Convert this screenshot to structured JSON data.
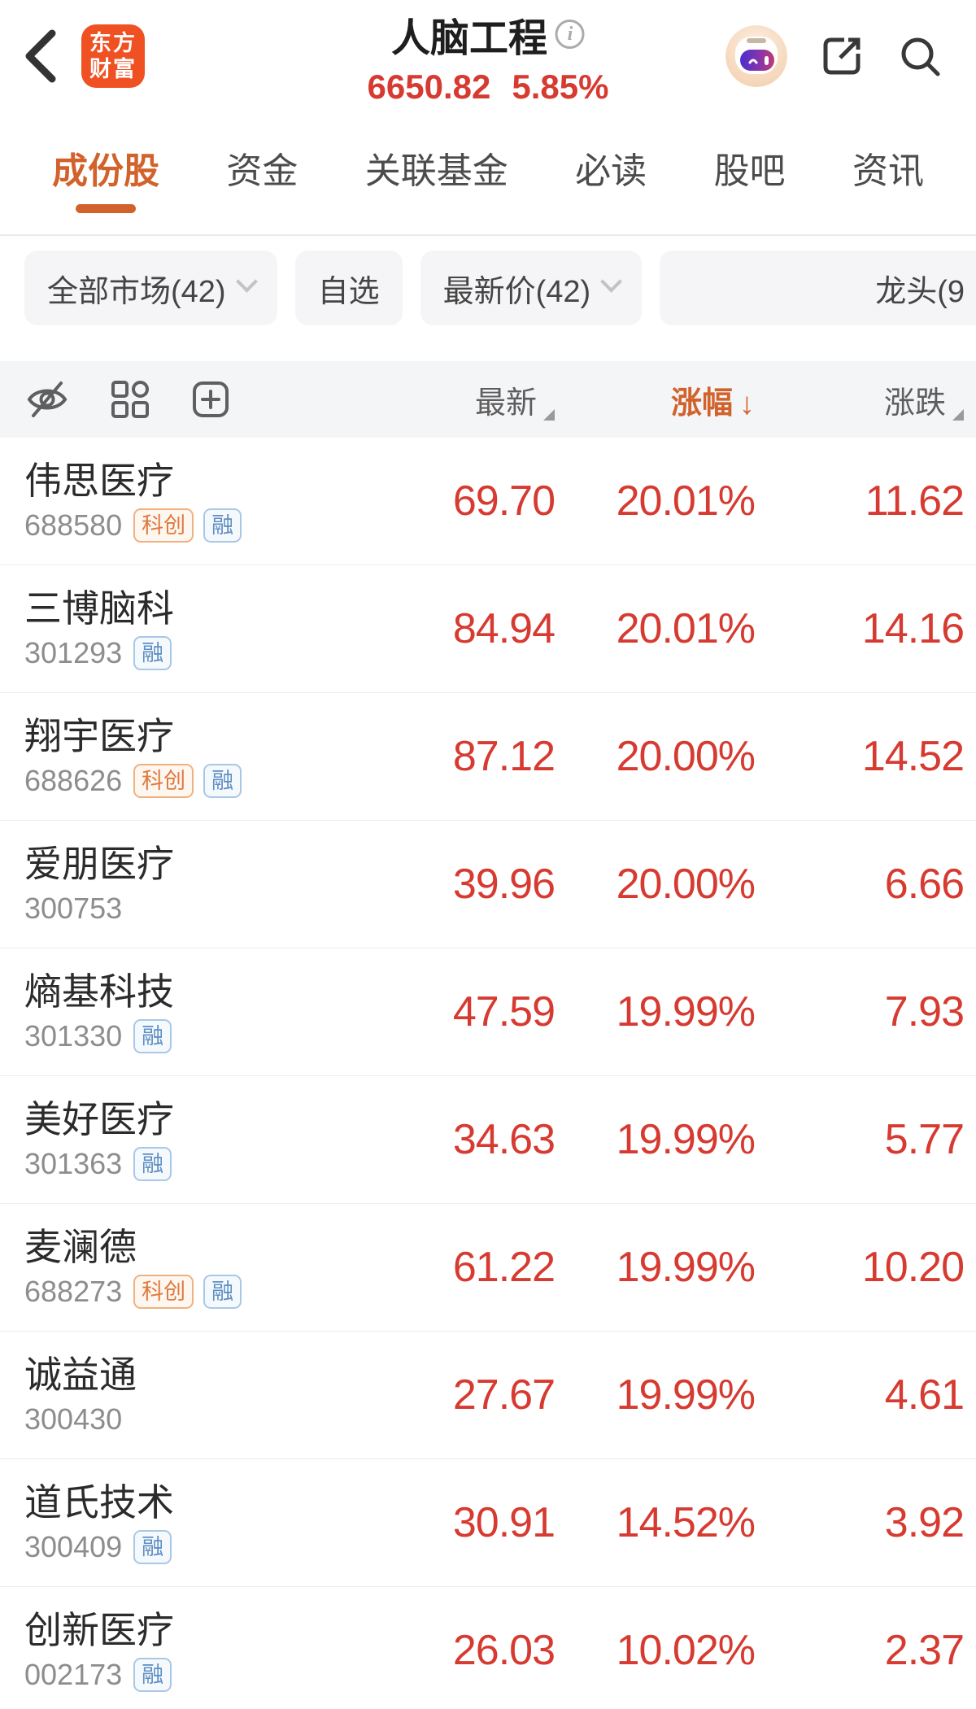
{
  "header": {
    "logo": {
      "line1": "东方",
      "line2": "财富"
    },
    "title": "人脑工程",
    "index_value": "6650.82",
    "index_change_pct": "5.85%"
  },
  "tabs": [
    {
      "label": "成份股",
      "active": true
    },
    {
      "label": "资金",
      "active": false
    },
    {
      "label": "关联基金",
      "active": false
    },
    {
      "label": "必读",
      "active": false
    },
    {
      "label": "股吧",
      "active": false
    },
    {
      "label": "资讯",
      "active": false
    }
  ],
  "filters": [
    {
      "label": "全部市场(42)",
      "chevron": true,
      "cut": false
    },
    {
      "label": "自选",
      "chevron": false,
      "cut": false
    },
    {
      "label": "最新价(42)",
      "chevron": true,
      "cut": false
    },
    {
      "label": "龙头(9",
      "chevron": false,
      "cut": true
    }
  ],
  "table": {
    "columns": [
      {
        "label": "最新",
        "sort": "none"
      },
      {
        "label": "涨幅",
        "sort": "desc"
      },
      {
        "label": "涨跌",
        "sort": "none"
      }
    ],
    "sort_arrow": "↓",
    "rows": [
      {
        "name": "伟思医疗",
        "code": "688580",
        "badges": [
          "科创",
          "融"
        ],
        "last": "69.70",
        "change_pct": "20.01%",
        "change": "11.62"
      },
      {
        "name": "三博脑科",
        "code": "301293",
        "badges": [
          "融"
        ],
        "last": "84.94",
        "change_pct": "20.01%",
        "change": "14.16"
      },
      {
        "name": "翔宇医疗",
        "code": "688626",
        "badges": [
          "科创",
          "融"
        ],
        "last": "87.12",
        "change_pct": "20.00%",
        "change": "14.52"
      },
      {
        "name": "爱朋医疗",
        "code": "300753",
        "badges": [],
        "last": "39.96",
        "change_pct": "20.00%",
        "change": "6.66"
      },
      {
        "name": "熵基科技",
        "code": "301330",
        "badges": [
          "融"
        ],
        "last": "47.59",
        "change_pct": "19.99%",
        "change": "7.93"
      },
      {
        "name": "美好医疗",
        "code": "301363",
        "badges": [
          "融"
        ],
        "last": "34.63",
        "change_pct": "19.99%",
        "change": "5.77"
      },
      {
        "name": "麦澜德",
        "code": "688273",
        "badges": [
          "科创",
          "融"
        ],
        "last": "61.22",
        "change_pct": "19.99%",
        "change": "10.20"
      },
      {
        "name": "诚益通",
        "code": "300430",
        "badges": [],
        "last": "27.67",
        "change_pct": "19.99%",
        "change": "4.61"
      },
      {
        "name": "道氏技术",
        "code": "300409",
        "badges": [
          "融"
        ],
        "last": "30.91",
        "change_pct": "14.52%",
        "change": "3.92"
      },
      {
        "name": "创新医疗",
        "code": "002173",
        "badges": [
          "融"
        ],
        "last": "26.03",
        "change_pct": "10.02%",
        "change": "2.37"
      }
    ]
  },
  "colors": {
    "up_red": "#d63a30",
    "accent_orange": "#d2622b",
    "logo_orange": "#f05123",
    "badge_star_market": "#e0793f",
    "badge_margin": "#5f8fc1"
  }
}
